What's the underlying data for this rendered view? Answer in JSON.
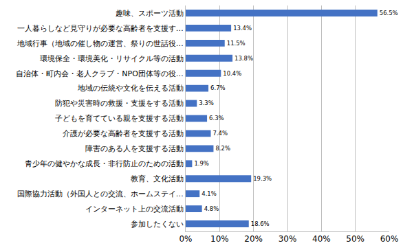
{
  "chart_data": {
    "type": "bar",
    "orientation": "horizontal",
    "categories": [
      "趣味、スポーツ活動",
      "一人暮らしなど見守りが必要な高齢者を支援す…",
      "地域行事（地域の催し物の運営、祭りの世話役…",
      "環境保全・環境美化・リサイクル等の活動",
      "自治体・町内会・老人クラブ・NPO団体等の役…",
      "地域の伝統や文化を伝える活動",
      "防犯や災害時の救援・支援をする活動",
      "子どもを育てている親を支援する活動",
      "介護が必要な高齢者を支援する活動",
      "障害のある人を支援する活動",
      "青少年の健やかな成長・非行防止のための活動",
      "教育、文化活動",
      "国際協力活動（外国人との交流、ホームステイ…",
      "インターネット上の交流活動",
      "参加したくない"
    ],
    "values": [
      56.5,
      13.4,
      11.5,
      13.8,
      10.4,
      6.7,
      3.3,
      6.3,
      7.4,
      8.2,
      1.9,
      19.3,
      4.1,
      4.8,
      18.6
    ],
    "value_labels": [
      "56.5%",
      "13.4%",
      "11.5%",
      "13.8%",
      "10.4%",
      "6.7%",
      "3.3%",
      "6.3%",
      "7.4%",
      "8.2%",
      "1.9%",
      "19.3%",
      "4.1%",
      "4.8%",
      "18.6%"
    ],
    "data_labels": true,
    "color": "#4472c4",
    "xlim": [
      0,
      60
    ],
    "xticks": [
      {
        "value": 0,
        "label": "0%"
      },
      {
        "value": 10,
        "label": "10%"
      },
      {
        "value": 20,
        "label": "20%"
      },
      {
        "value": 30,
        "label": "30%"
      },
      {
        "value": 40,
        "label": "40%"
      },
      {
        "value": 50,
        "label": "50%"
      },
      {
        "value": 60,
        "label": "60%"
      }
    ],
    "grid": true
  }
}
